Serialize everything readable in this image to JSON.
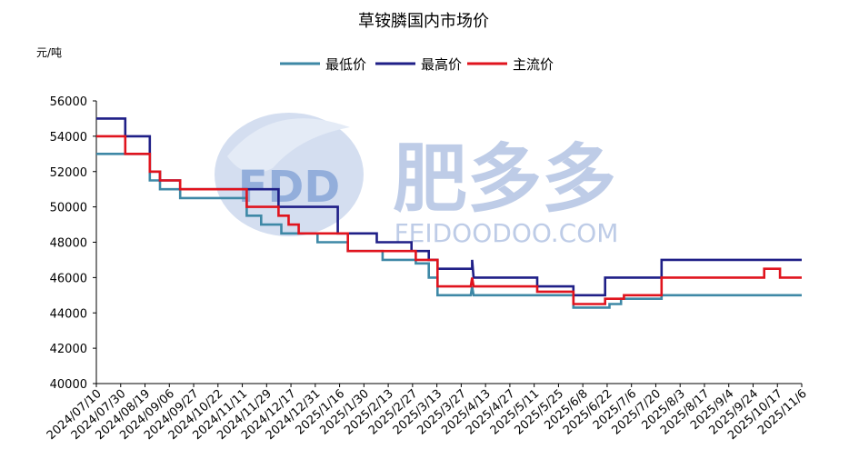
{
  "watermark": {
    "logo_text": "FDD",
    "cn_text": "肥多多",
    "domain_text": "FEIDOODOO.COM"
  },
  "colors": {
    "min": "#3E88A6",
    "max": "#1F1F87",
    "main": "#E0141E",
    "watermark": "#9FB4DA"
  },
  "chart_data": {
    "type": "line",
    "title": "草铵膦国内市场价",
    "ylabel": "元/吨",
    "xlabel": "",
    "ylim": [
      40000,
      56000
    ],
    "ytick_step": 2000,
    "grid": false,
    "legend_position": "top-center",
    "x_labels": [
      "2024/07/10",
      "2024/07/30",
      "2024/08/19",
      "2024/09/06",
      "2024/09/27",
      "2024/10/22",
      "2024/11/11",
      "2024/11/29",
      "2024/12/17",
      "2024/12/31",
      "2025/1/16",
      "2025/1/30",
      "2025/2/13",
      "2025/2/27",
      "2025/3/13",
      "2025/3/27",
      "2025/4/13",
      "2025/4/27",
      "2025/5/11",
      "2025/5/25",
      "2025/6/8",
      "2025/6/22",
      "2025/7/6",
      "2025/7/20",
      "2025/8/3",
      "2025/8/17",
      "2025/9/4",
      "2025/9/24",
      "2025/10/17",
      "2025/11/6"
    ],
    "series": [
      {
        "name": "最低价",
        "color_key": "min",
        "points": [
          [
            "2024-07-10",
            53000
          ],
          [
            "2024-08-16",
            53000
          ],
          [
            "2024-08-16",
            51500
          ],
          [
            "2024-08-23",
            51500
          ],
          [
            "2024-08-23",
            51000
          ],
          [
            "2024-09-06",
            51000
          ],
          [
            "2024-09-06",
            50500
          ],
          [
            "2024-10-22",
            50500
          ],
          [
            "2024-10-22",
            49500
          ],
          [
            "2024-11-01",
            49500
          ],
          [
            "2024-11-01",
            49000
          ],
          [
            "2024-11-15",
            49000
          ],
          [
            "2024-11-15",
            48500
          ],
          [
            "2024-12-10",
            48500
          ],
          [
            "2024-12-10",
            48000
          ],
          [
            "2024-12-31",
            48000
          ],
          [
            "2024-12-31",
            47500
          ],
          [
            "2025-01-24",
            47500
          ],
          [
            "2025-01-24",
            47000
          ],
          [
            "2025-02-16",
            47000
          ],
          [
            "2025-02-16",
            46800
          ],
          [
            "2025-02-25",
            46800
          ],
          [
            "2025-02-25",
            46000
          ],
          [
            "2025-03-03",
            46000
          ],
          [
            "2025-03-03",
            45000
          ],
          [
            "2025-03-26",
            45000
          ],
          [
            "2025-03-27",
            45500
          ],
          [
            "2025-03-28",
            45000
          ],
          [
            "2025-06-05",
            45000
          ],
          [
            "2025-06-05",
            44300
          ],
          [
            "2025-06-30",
            44300
          ],
          [
            "2025-06-30",
            44500
          ],
          [
            "2025-07-08",
            44500
          ],
          [
            "2025-07-08",
            44800
          ],
          [
            "2025-08-05",
            44800
          ],
          [
            "2025-08-05",
            45000
          ],
          [
            "2025-11-10",
            45000
          ]
        ]
      },
      {
        "name": "最高价",
        "color_key": "max",
        "points": [
          [
            "2024-07-10",
            55000
          ],
          [
            "2024-07-30",
            55000
          ],
          [
            "2024-07-30",
            54000
          ],
          [
            "2024-08-16",
            54000
          ],
          [
            "2024-08-16",
            52000
          ],
          [
            "2024-08-23",
            52000
          ],
          [
            "2024-08-23",
            51500
          ],
          [
            "2024-09-06",
            51500
          ],
          [
            "2024-09-06",
            51000
          ],
          [
            "2024-11-13",
            51000
          ],
          [
            "2024-11-13",
            50000
          ],
          [
            "2024-12-24",
            50000
          ],
          [
            "2024-12-24",
            48500
          ],
          [
            "2025-01-20",
            48500
          ],
          [
            "2025-01-20",
            48000
          ],
          [
            "2025-02-13",
            48000
          ],
          [
            "2025-02-13",
            47500
          ],
          [
            "2025-02-25",
            47500
          ],
          [
            "2025-02-25",
            47000
          ],
          [
            "2025-03-03",
            47000
          ],
          [
            "2025-03-03",
            46500
          ],
          [
            "2025-03-27",
            46500
          ],
          [
            "2025-03-27",
            47000
          ],
          [
            "2025-03-28",
            46000
          ],
          [
            "2025-05-11",
            46000
          ],
          [
            "2025-05-11",
            45500
          ],
          [
            "2025-06-05",
            45500
          ],
          [
            "2025-06-05",
            45000
          ],
          [
            "2025-06-27",
            45000
          ],
          [
            "2025-06-27",
            46000
          ],
          [
            "2025-08-05",
            46000
          ],
          [
            "2025-08-05",
            47000
          ],
          [
            "2025-11-10",
            47000
          ]
        ]
      },
      {
        "name": "主流价",
        "color_key": "main",
        "points": [
          [
            "2024-07-10",
            54000
          ],
          [
            "2024-07-30",
            54000
          ],
          [
            "2024-07-30",
            53000
          ],
          [
            "2024-08-16",
            53000
          ],
          [
            "2024-08-16",
            52000
          ],
          [
            "2024-08-23",
            52000
          ],
          [
            "2024-08-23",
            51500
          ],
          [
            "2024-09-06",
            51500
          ],
          [
            "2024-09-06",
            51000
          ],
          [
            "2024-10-22",
            51000
          ],
          [
            "2024-10-22",
            50000
          ],
          [
            "2024-11-13",
            50000
          ],
          [
            "2024-11-13",
            49500
          ],
          [
            "2024-11-20",
            49500
          ],
          [
            "2024-11-20",
            49000
          ],
          [
            "2024-11-27",
            49000
          ],
          [
            "2024-11-27",
            48500
          ],
          [
            "2024-12-31",
            48500
          ],
          [
            "2024-12-31",
            47500
          ],
          [
            "2025-02-16",
            47500
          ],
          [
            "2025-02-16",
            47000
          ],
          [
            "2025-03-03",
            47000
          ],
          [
            "2025-03-03",
            45500
          ],
          [
            "2025-03-26",
            45500
          ],
          [
            "2025-03-27",
            46000
          ],
          [
            "2025-03-28",
            45500
          ],
          [
            "2025-05-11",
            45500
          ],
          [
            "2025-05-11",
            45200
          ],
          [
            "2025-06-05",
            45200
          ],
          [
            "2025-06-05",
            44500
          ],
          [
            "2025-06-27",
            44500
          ],
          [
            "2025-06-27",
            44800
          ],
          [
            "2025-07-10",
            44800
          ],
          [
            "2025-07-10",
            45000
          ],
          [
            "2025-08-05",
            45000
          ],
          [
            "2025-08-05",
            46000
          ],
          [
            "2025-10-15",
            46000
          ],
          [
            "2025-10-15",
            46500
          ],
          [
            "2025-10-26",
            46500
          ],
          [
            "2025-10-26",
            46000
          ],
          [
            "2025-11-10",
            46000
          ]
        ]
      }
    ]
  }
}
